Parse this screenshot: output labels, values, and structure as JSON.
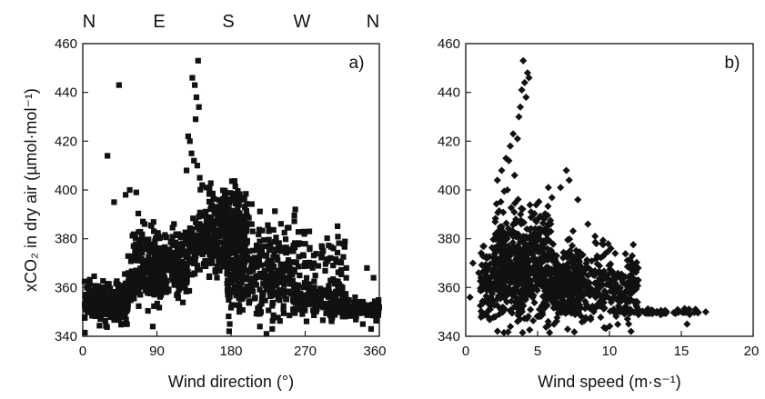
{
  "chart_data": [
    {
      "type": "scatter",
      "panel_label": "a)",
      "xlabel": "Wind direction (°)",
      "ylabel": "xCO₂ in dry air (µmol·mol⁻¹)",
      "xlim": [
        0,
        360
      ],
      "ylim": [
        340,
        460
      ],
      "x_ticks": [
        "0",
        "90",
        "180",
        "270",
        "360"
      ],
      "y_ticks": [
        "340",
        "360",
        "380",
        "400",
        "420",
        "440",
        "460"
      ],
      "top_axis_labels": [
        "N",
        "E",
        "S",
        "W",
        "N"
      ],
      "marker": "square",
      "grid": false,
      "clusters": [
        {
          "x": [
            2,
            55
          ],
          "y_center": 354,
          "y_spread": 4,
          "n": 260
        },
        {
          "x": [
            55,
            95
          ],
          "y_center": 362,
          "y_spread": 4,
          "n": 160
        },
        {
          "x": [
            60,
            130
          ],
          "y_center": 375,
          "y_spread": 5,
          "n": 170
        },
        {
          "x": [
            95,
            130
          ],
          "y_center": 366,
          "y_spread": 5,
          "n": 120
        },
        {
          "x": [
            130,
            200
          ],
          "y_center": 378,
          "y_spread": 7,
          "n": 380
        },
        {
          "x": [
            150,
            200
          ],
          "y_center": 390,
          "y_spread": 6,
          "n": 120
        },
        {
          "x": [
            175,
            255
          ],
          "y_center": 362,
          "y_spread": 6,
          "n": 260
        },
        {
          "x": [
            200,
            260
          ],
          "y_center": 378,
          "y_spread": 7,
          "n": 70
        },
        {
          "x": [
            255,
            320
          ],
          "y_center": 356,
          "y_spread": 4,
          "n": 160
        },
        {
          "x": [
            260,
            320
          ],
          "y_center": 372,
          "y_spread": 6,
          "n": 55
        },
        {
          "x": [
            300,
            360
          ],
          "y_center": 351,
          "y_spread": 2,
          "n": 170
        }
      ],
      "points": [
        {
          "x": 30,
          "y": 414
        },
        {
          "x": 44,
          "y": 443
        },
        {
          "x": 38,
          "y": 395
        },
        {
          "x": 57,
          "y": 400
        },
        {
          "x": 52,
          "y": 398
        },
        {
          "x": 65,
          "y": 399
        },
        {
          "x": 75,
          "y": 386
        },
        {
          "x": 72,
          "y": 381
        },
        {
          "x": 85,
          "y": 344
        },
        {
          "x": 133,
          "y": 446
        },
        {
          "x": 136,
          "y": 443
        },
        {
          "x": 138,
          "y": 438
        },
        {
          "x": 140,
          "y": 453
        },
        {
          "x": 141,
          "y": 434
        },
        {
          "x": 137,
          "y": 429
        },
        {
          "x": 130,
          "y": 420
        },
        {
          "x": 128,
          "y": 422
        },
        {
          "x": 132,
          "y": 415
        },
        {
          "x": 135,
          "y": 412
        },
        {
          "x": 139,
          "y": 410
        },
        {
          "x": 142,
          "y": 405
        },
        {
          "x": 145,
          "y": 402
        },
        {
          "x": 150,
          "y": 401
        },
        {
          "x": 126,
          "y": 408
        },
        {
          "x": 215,
          "y": 344
        },
        {
          "x": 223,
          "y": 341
        },
        {
          "x": 230,
          "y": 343
        },
        {
          "x": 258,
          "y": 392
        },
        {
          "x": 275,
          "y": 383
        },
        {
          "x": 290,
          "y": 377
        },
        {
          "x": 320,
          "y": 368
        },
        {
          "x": 345,
          "y": 368
        },
        {
          "x": 353,
          "y": 364
        },
        {
          "x": 340,
          "y": 345
        },
        {
          "x": 350,
          "y": 343
        }
      ]
    },
    {
      "type": "scatter",
      "panel_label": "b)",
      "xlabel": "Wind speed (m·s⁻¹)",
      "xlim": [
        0,
        20
      ],
      "ylim": [
        340,
        460
      ],
      "x_ticks": [
        "0",
        "5",
        "10",
        "15",
        "20"
      ],
      "y_ticks": [
        "340",
        "360",
        "380",
        "400",
        "420",
        "440",
        "460"
      ],
      "marker": "diamond",
      "grid": false,
      "clusters": [
        {
          "x": [
            1,
            8
          ],
          "y_center": 363,
          "y_spread": 8,
          "n": 700
        },
        {
          "x": [
            2,
            6
          ],
          "y_center": 380,
          "y_spread": 8,
          "n": 180
        },
        {
          "x": [
            6,
            12
          ],
          "y_center": 358,
          "y_spread": 6,
          "n": 300
        },
        {
          "x": [
            7,
            12
          ],
          "y_center": 367,
          "y_spread": 5,
          "n": 90
        },
        {
          "x": [
            10,
            16.5
          ],
          "y_center": 350,
          "y_spread": 0.6,
          "n": 70
        }
      ],
      "points": [
        {
          "x": 4.0,
          "y": 453
        },
        {
          "x": 4.3,
          "y": 448
        },
        {
          "x": 4.4,
          "y": 446
        },
        {
          "x": 4.1,
          "y": 444
        },
        {
          "x": 3.9,
          "y": 441
        },
        {
          "x": 4.2,
          "y": 438
        },
        {
          "x": 3.8,
          "y": 434
        },
        {
          "x": 3.7,
          "y": 430
        },
        {
          "x": 3.3,
          "y": 423
        },
        {
          "x": 3.1,
          "y": 418
        },
        {
          "x": 3.6,
          "y": 421
        },
        {
          "x": 2.8,
          "y": 413
        },
        {
          "x": 3.0,
          "y": 412
        },
        {
          "x": 2.5,
          "y": 408
        },
        {
          "x": 2.2,
          "y": 404
        },
        {
          "x": 3.4,
          "y": 406
        },
        {
          "x": 2.9,
          "y": 400
        },
        {
          "x": 7.0,
          "y": 408
        },
        {
          "x": 7.2,
          "y": 404
        },
        {
          "x": 6.6,
          "y": 401
        },
        {
          "x": 7.8,
          "y": 396
        },
        {
          "x": 8.5,
          "y": 386
        },
        {
          "x": 9.0,
          "y": 381
        },
        {
          "x": 9.5,
          "y": 378
        },
        {
          "x": 10.1,
          "y": 376
        },
        {
          "x": 10.4,
          "y": 374
        },
        {
          "x": 11.6,
          "y": 370
        },
        {
          "x": 12.0,
          "y": 363
        },
        {
          "x": 11.5,
          "y": 342
        },
        {
          "x": 15.4,
          "y": 345
        },
        {
          "x": 16.7,
          "y": 350
        },
        {
          "x": 0.5,
          "y": 370
        },
        {
          "x": 0.9,
          "y": 366
        },
        {
          "x": 0.3,
          "y": 356
        },
        {
          "x": 1.5,
          "y": 350
        }
      ]
    }
  ]
}
